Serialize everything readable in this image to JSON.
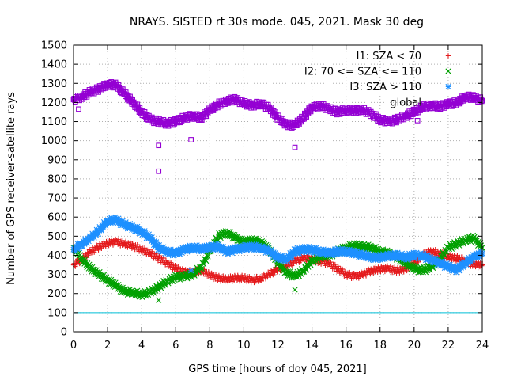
{
  "chart_data": {
    "type": "scatter",
    "title": "NRAYS. SISTED rt 30s mode. 045, 2021. Mask 30 deg",
    "xlabel": "GPS time [hours of doy 045, 2021]",
    "ylabel": "Number of GPS receiver-satellite rays",
    "xlim": [
      0,
      24
    ],
    "ylim": [
      0,
      1500
    ],
    "xticks": [
      "0",
      "2",
      "4",
      "6",
      "8",
      "10",
      "12",
      "14",
      "16",
      "18",
      "20",
      "22",
      "24"
    ],
    "yticks": [
      "0",
      "100",
      "200",
      "300",
      "400",
      "500",
      "600",
      "700",
      "800",
      "900",
      "1000",
      "1100",
      "1200",
      "1300",
      "1400",
      "1500"
    ],
    "grid": true,
    "threshold_line": 100,
    "legend_position": "top-right",
    "series": [
      {
        "name": "I1: SZA < 70",
        "marker": "plus",
        "color": "#e41a1c",
        "x": [
          0,
          0.5,
          1,
          1.5,
          2,
          2.5,
          3,
          3.5,
          4,
          4.5,
          5,
          5.5,
          6,
          6.5,
          7,
          7.5,
          8,
          8.5,
          9,
          9.5,
          10,
          10.5,
          11,
          11.5,
          12,
          12.5,
          13,
          13.5,
          14,
          14.5,
          15,
          15.5,
          16,
          16.5,
          17,
          17.5,
          18,
          18.5,
          19,
          19.5,
          20,
          20.5,
          21,
          21.5,
          22,
          22.5,
          23,
          23.5,
          24
        ],
        "y": [
          350,
          380,
          420,
          445,
          465,
          470,
          460,
          450,
          430,
          410,
          385,
          360,
          330,
          310,
          310,
          320,
          295,
          280,
          275,
          280,
          280,
          270,
          280,
          300,
          330,
          345,
          370,
          385,
          380,
          370,
          355,
          330,
          300,
          290,
          300,
          320,
          330,
          330,
          320,
          330,
          360,
          400,
          420,
          410,
          390,
          385,
          370,
          350,
          350
        ]
      },
      {
        "name": "I2: 70 <= SZA <= 110",
        "marker": "cross",
        "color": "#00a000",
        "x": [
          0,
          0.5,
          1,
          1.5,
          2,
          2.5,
          3,
          3.5,
          4,
          4.5,
          5,
          5.5,
          6,
          6.5,
          7,
          7.5,
          8,
          8.5,
          9,
          9.5,
          10,
          10.5,
          11,
          11.5,
          12,
          12.5,
          13,
          13.5,
          14,
          14.5,
          15,
          15.5,
          16,
          16.5,
          17,
          17.5,
          18,
          18.5,
          19,
          19.5,
          20,
          20.5,
          21,
          21.5,
          22,
          22.5,
          23,
          23.5,
          24
        ],
        "y": [
          440,
          380,
          330,
          300,
          270,
          240,
          210,
          205,
          195,
          205,
          235,
          265,
          285,
          290,
          300,
          340,
          420,
          500,
          520,
          490,
          470,
          480,
          470,
          430,
          360,
          310,
          290,
          320,
          370,
          395,
          400,
          420,
          440,
          450,
          445,
          440,
          420,
          410,
          390,
          360,
          330,
          320,
          340,
          380,
          440,
          460,
          480,
          490,
          440
        ]
      },
      {
        "name": "I3: SZA > 110",
        "marker": "star",
        "color": "#1e90ff",
        "x": [
          0,
          0.5,
          1,
          1.5,
          2,
          2.5,
          3,
          3.5,
          4,
          4.5,
          5,
          5.5,
          6,
          6.5,
          7,
          7.5,
          8,
          8.5,
          9,
          9.5,
          10,
          10.5,
          11,
          11.5,
          12,
          12.5,
          13,
          13.5,
          14,
          14.5,
          15,
          15.5,
          16,
          16.5,
          17,
          17.5,
          18,
          18.5,
          19,
          19.5,
          20,
          20.5,
          21,
          21.5,
          22,
          22.5,
          23,
          23.5,
          24
        ],
        "y": [
          430,
          460,
          490,
          530,
          580,
          585,
          560,
          545,
          525,
          490,
          440,
          420,
          410,
          430,
          440,
          435,
          440,
          445,
          420,
          430,
          440,
          445,
          440,
          420,
          390,
          380,
          420,
          430,
          430,
          420,
          410,
          420,
          420,
          410,
          400,
          390,
          390,
          395,
          400,
          390,
          400,
          395,
          380,
          360,
          340,
          325,
          360,
          390,
          410
        ]
      },
      {
        "name": "global",
        "marker": "square",
        "color": "#9400d3",
        "x": [
          0,
          0.5,
          1,
          1.5,
          2,
          2.5,
          3,
          3.5,
          4,
          4.5,
          5,
          5.5,
          6,
          6.5,
          7,
          7.5,
          8,
          8.5,
          9,
          9.5,
          10,
          10.5,
          11,
          11.5,
          12,
          12.5,
          13,
          13.5,
          14,
          14.5,
          15,
          15.5,
          16,
          16.5,
          17,
          17.5,
          18,
          18.5,
          19,
          19.5,
          20,
          20.5,
          21,
          21.5,
          22,
          22.5,
          23,
          23.5,
          24
        ],
        "y": [
          1215,
          1230,
          1255,
          1270,
          1295,
          1290,
          1245,
          1200,
          1150,
          1110,
          1100,
          1090,
          1100,
          1120,
          1130,
          1120,
          1160,
          1190,
          1210,
          1215,
          1195,
          1185,
          1195,
          1170,
          1120,
          1085,
          1080,
          1120,
          1175,
          1185,
          1165,
          1150,
          1160,
          1155,
          1160,
          1140,
          1110,
          1100,
          1110,
          1130,
          1150,
          1175,
          1185,
          1180,
          1190,
          1200,
          1230,
          1225,
          1210
        ]
      }
    ],
    "outliers": [
      {
        "series": "global",
        "x": 0.3,
        "y": 1165
      },
      {
        "series": "global",
        "x": 5.0,
        "y": 975
      },
      {
        "series": "global",
        "x": 5.0,
        "y": 840
      },
      {
        "series": "global",
        "x": 6.9,
        "y": 1005
      },
      {
        "series": "global",
        "x": 13.0,
        "y": 965
      },
      {
        "series": "global",
        "x": 20.2,
        "y": 1105
      },
      {
        "series": "I2: 70 <= SZA <= 110",
        "x": 5.0,
        "y": 165
      },
      {
        "series": "I2: 70 <= SZA <= 110",
        "x": 13.0,
        "y": 220
      },
      {
        "series": "I3: SZA > 110",
        "x": 6.9,
        "y": 320
      },
      {
        "series": "I1: SZA < 70",
        "x": 20.2,
        "y": 375
      }
    ]
  }
}
